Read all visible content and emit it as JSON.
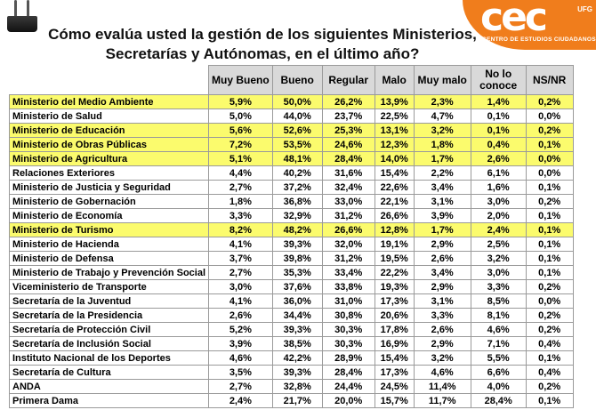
{
  "title_line1": "Cómo evalúa usted la gestión de los siguientes Ministerios,",
  "title_line2": "Secretarías y Autónomas, en el último año?",
  "logo": {
    "mark": "cec",
    "suffix": "UFG",
    "subtitle": "CENTRO DE ESTUDIOS CIUDADANOS",
    "color": "#f07d1c"
  },
  "highlight_color": "#fbfb6d",
  "columns": [
    "Muy Bueno",
    "Bueno",
    "Regular",
    "Malo",
    "Muy malo",
    "No lo conoce",
    "NS/NR"
  ],
  "rows": [
    {
      "name": "Ministerio del Medio Ambiente",
      "highlight": true,
      "values": [
        "5,9%",
        "50,0%",
        "26,2%",
        "13,9%",
        "2,3%",
        "1,4%",
        "0,2%"
      ]
    },
    {
      "name": "Ministerio de Salud",
      "highlight": false,
      "values": [
        "5,0%",
        "44,0%",
        "23,7%",
        "22,5%",
        "4,7%",
        "0,1%",
        "0,0%"
      ]
    },
    {
      "name": "Ministerio de Educación",
      "highlight": true,
      "values": [
        "5,6%",
        "52,6%",
        "25,3%",
        "13,1%",
        "3,2%",
        "0,1%",
        "0,2%"
      ]
    },
    {
      "name": "Ministerio de Obras Públicas",
      "highlight": true,
      "values": [
        "7,2%",
        "53,5%",
        "24,6%",
        "12,3%",
        "1,8%",
        "0,4%",
        "0,1%"
      ]
    },
    {
      "name": "Ministerio de Agricultura",
      "highlight": true,
      "values": [
        "5,1%",
        "48,1%",
        "28,4%",
        "14,0%",
        "1,7%",
        "2,6%",
        "0,0%"
      ]
    },
    {
      "name": "Relaciones Exteriores",
      "highlight": false,
      "values": [
        "4,4%",
        "40,2%",
        "31,6%",
        "15,4%",
        "2,2%",
        "6,1%",
        "0,0%"
      ]
    },
    {
      "name": "Ministerio de Justicia y Seguridad",
      "highlight": false,
      "values": [
        "2,7%",
        "37,2%",
        "32,4%",
        "22,6%",
        "3,4%",
        "1,6%",
        "0,1%"
      ]
    },
    {
      "name": "Ministerio de Gobernación",
      "highlight": false,
      "values": [
        "1,8%",
        "36,8%",
        "33,0%",
        "22,1%",
        "3,1%",
        "3,0%",
        "0,2%"
      ]
    },
    {
      "name": "Ministerio de Economía",
      "highlight": false,
      "values": [
        "3,3%",
        "32,9%",
        "31,2%",
        "26,6%",
        "3,9%",
        "2,0%",
        "0,1%"
      ]
    },
    {
      "name": "Ministerio de Turismo",
      "highlight": true,
      "values": [
        "8,2%",
        "48,2%",
        "26,6%",
        "12,8%",
        "1,7%",
        "2,4%",
        "0,1%"
      ]
    },
    {
      "name": "Ministerio de Hacienda",
      "highlight": false,
      "values": [
        "4,1%",
        "39,3%",
        "32,0%",
        "19,1%",
        "2,9%",
        "2,5%",
        "0,1%"
      ]
    },
    {
      "name": "Ministerio de Defensa",
      "highlight": false,
      "values": [
        "3,7%",
        "39,8%",
        "31,2%",
        "19,5%",
        "2,6%",
        "3,2%",
        "0,1%"
      ]
    },
    {
      "name": "Ministerio de Trabajo y Prevención Social",
      "highlight": false,
      "values": [
        "2,7%",
        "35,3%",
        "33,4%",
        "22,2%",
        "3,4%",
        "3,0%",
        "0,1%"
      ]
    },
    {
      "name": "Viceministerio de Transporte",
      "highlight": false,
      "values": [
        "3,0%",
        "37,6%",
        "33,8%",
        "19,3%",
        "2,9%",
        "3,3%",
        "0,2%"
      ]
    },
    {
      "name": "Secretaría de la Juventud",
      "highlight": false,
      "values": [
        "4,1%",
        "36,0%",
        "31,0%",
        "17,3%",
        "3,1%",
        "8,5%",
        "0,0%"
      ]
    },
    {
      "name": "Secretaría de la Presidencia",
      "highlight": false,
      "values": [
        "2,6%",
        "34,4%",
        "30,8%",
        "20,6%",
        "3,3%",
        "8,1%",
        "0,2%"
      ]
    },
    {
      "name": "Secretaría de Protección Civil",
      "highlight": false,
      "values": [
        "5,2%",
        "39,3%",
        "30,3%",
        "17,8%",
        "2,6%",
        "4,6%",
        "0,2%"
      ]
    },
    {
      "name": "Secretaría de Inclusión Social",
      "highlight": false,
      "values": [
        "3,9%",
        "38,5%",
        "30,3%",
        "16,9%",
        "2,9%",
        "7,1%",
        "0,4%"
      ]
    },
    {
      "name": "Instituto Nacional de los Deportes",
      "highlight": false,
      "values": [
        "4,6%",
        "42,2%",
        "28,9%",
        "15,4%",
        "3,2%",
        "5,5%",
        "0,1%"
      ]
    },
    {
      "name": "Secretaría de Cultura",
      "highlight": false,
      "values": [
        "3,5%",
        "39,3%",
        "28,4%",
        "17,3%",
        "4,6%",
        "6,6%",
        "0,4%"
      ]
    },
    {
      "name": "ANDA",
      "highlight": false,
      "values": [
        "2,7%",
        "32,8%",
        "24,4%",
        "24,5%",
        "11,4%",
        "4,0%",
        "0,2%"
      ]
    },
    {
      "name": "Primera Dama",
      "highlight": false,
      "values": [
        "2,4%",
        "21,7%",
        "20,0%",
        "15,7%",
        "11,7%",
        "28,4%",
        "0,1%"
      ]
    }
  ]
}
